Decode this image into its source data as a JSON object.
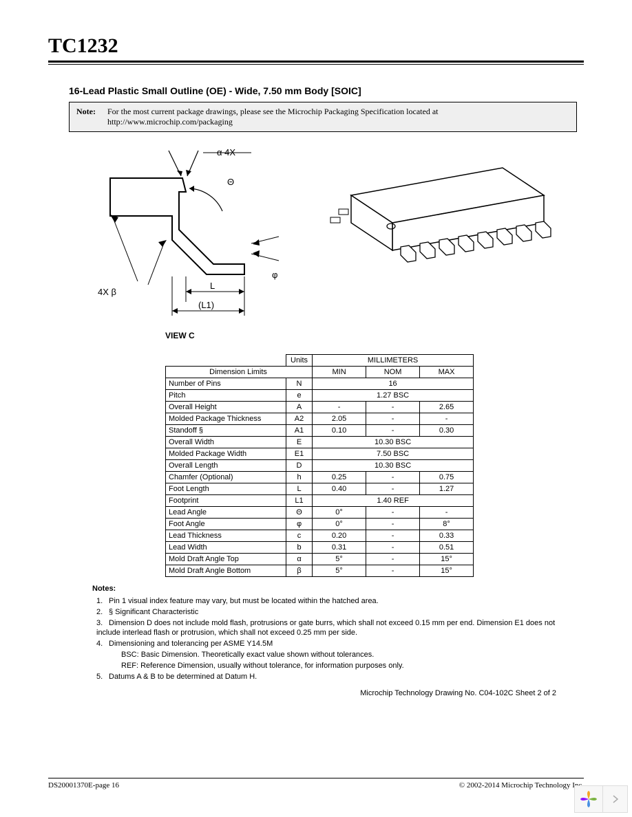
{
  "header": {
    "product": "TC1232"
  },
  "section_title": "16-Lead Plastic Small Outline (OE) - Wide, 7.50 mm Body  [SOIC]",
  "note_box": {
    "label": "Note:",
    "text": "For the most current package drawings, please see the Microchip Packaging Specification located at http://www.microchip.com/packaging"
  },
  "diagram_labels": {
    "alpha_4x": "α  4X",
    "theta": "Θ",
    "phi": "φ",
    "L": "L",
    "L1": "(L1)",
    "beta_4x": "4X  β",
    "view_c": "VIEW C"
  },
  "table": {
    "units_label": "Units",
    "units_value": "MILLIMETERS",
    "limits_label": "Dimension Limits",
    "min": "MIN",
    "nom": "NOM",
    "max": "MAX",
    "rows": [
      {
        "label": "Number of Pins",
        "sym": "N",
        "span": "16"
      },
      {
        "label": "Pitch",
        "sym": "e",
        "span": "1.27 BSC"
      },
      {
        "label": "Overall Height",
        "sym": "A",
        "min": "-",
        "nom": "-",
        "max": "2.65"
      },
      {
        "label": "Molded Package Thickness",
        "sym": "A2",
        "min": "2.05",
        "nom": "-",
        "max": "-"
      },
      {
        "label": "Standoff              §",
        "sym": "A1",
        "min": "0.10",
        "nom": "-",
        "max": "0.30"
      },
      {
        "label": "Overall Width",
        "sym": "E",
        "span": "10.30 BSC"
      },
      {
        "label": "Molded Package Width",
        "sym": "E1",
        "span": "7.50 BSC"
      },
      {
        "label": "Overall Length",
        "sym": "D",
        "span": "10.30 BSC"
      },
      {
        "label": "Chamfer (Optional)",
        "sym": "h",
        "min": "0.25",
        "nom": "-",
        "max": "0.75"
      },
      {
        "label": "Foot Length",
        "sym": "L",
        "min": "0.40",
        "nom": "-",
        "max": "1.27"
      },
      {
        "label": "Footprint",
        "sym": "L1",
        "span": "1.40 REF"
      },
      {
        "label": "Lead Angle",
        "sym": "Θ",
        "min": "0°",
        "nom": "-",
        "max": "-"
      },
      {
        "label": "Foot Angle",
        "sym": "φ",
        "min": "0°",
        "nom": "-",
        "max": "8°"
      },
      {
        "label": "Lead Thickness",
        "sym": "c",
        "min": "0.20",
        "nom": "-",
        "max": "0.33"
      },
      {
        "label": "Lead Width",
        "sym": "b",
        "min": "0.31",
        "nom": "-",
        "max": "0.51"
      },
      {
        "label": "Mold Draft Angle Top",
        "sym": "α",
        "min": "5°",
        "nom": "-",
        "max": "15°"
      },
      {
        "label": "Mold Draft Angle Bottom",
        "sym": "β",
        "min": "5°",
        "nom": "-",
        "max": "15°"
      }
    ]
  },
  "notes": {
    "heading": "Notes:",
    "items": [
      "Pin 1 visual index feature may vary, but must be located within the hatched area.",
      "§ Significant Characteristic",
      "Dimension D does not include mold flash, protrusions or gate burrs, which shall not exceed 0.15 mm per end.  Dimension E1 does not include interlead flash or protrusion, which shall not exceed 0.25 mm per side.",
      "Dimensioning and tolerancing per ASME Y14.5M",
      "Datums A & B to be determined at Datum H."
    ],
    "bsc": "BSC: Basic Dimension. Theoretically exact value shown without tolerances.",
    "ref": "REF: Reference Dimension, usually without tolerance, for information purposes only."
  },
  "drawing_no": "Microchip Technology Drawing No. C04-102C Sheet 2 of 2",
  "footer": {
    "left": "DS20001370E-page 16",
    "right": "© 2002-2014 Microchip Technology Inc."
  },
  "colors": {
    "note_bg": "#efefef",
    "text": "#000000",
    "pager_bg": "#f7f7f7",
    "pager_border": "#dddddd",
    "logo_petals": [
      "#f5a623",
      "#7cb342",
      "#4a90e2",
      "#9013fe"
    ]
  }
}
